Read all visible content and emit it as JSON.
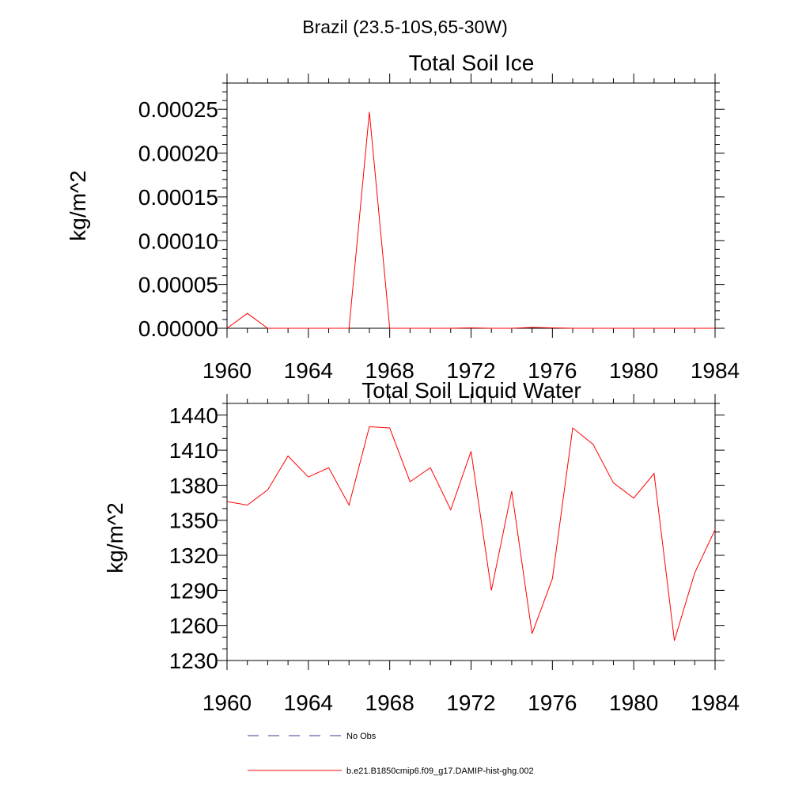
{
  "figure_title": "Brazil (23.5-10S,65-30W)",
  "legend": [
    {
      "label": "No Obs",
      "style": "dashed",
      "color": "#3b3b8f"
    },
    {
      "label": "b.e21.B1850cmip6.f09_g17.DAMIP-hist-ghg.002",
      "style": "solid",
      "color": "#ff0000"
    }
  ],
  "colors": {
    "series": "#ff0000",
    "axes": "#000000",
    "no_obs": "#3b3b8f"
  },
  "chart_data": [
    {
      "type": "line",
      "title": "Total Soil Ice",
      "xlabel": "",
      "ylabel": "kg/m^2",
      "xlim": [
        1960,
        1984
      ],
      "ylim": [
        0,
        0.00028
      ],
      "xticks": [
        1960,
        1964,
        1968,
        1972,
        1976,
        1980,
        1984
      ],
      "xticklabels": [
        "1960",
        "1964",
        "1968",
        "1972",
        "1976",
        "1980",
        "1984"
      ],
      "yticks": [
        0,
        5e-05,
        0.0001,
        0.00015,
        0.0002,
        0.00025
      ],
      "yticklabels": [
        "0.00000",
        "0.00005",
        "0.00010",
        "0.00015",
        "0.00020",
        "0.00025"
      ],
      "series": [
        {
          "name": "b.e21.B1850cmip6.f09_g17.DAMIP-hist-ghg.002",
          "x": [
            1960,
            1961,
            1962,
            1963,
            1964,
            1965,
            1966,
            1967,
            1968,
            1969,
            1970,
            1971,
            1972,
            1973,
            1974,
            1975,
            1976,
            1977,
            1978,
            1979,
            1980,
            1981,
            1982,
            1983,
            1984
          ],
          "y": [
            0,
            1.7e-05,
            0,
            0,
            0,
            0,
            0,
            0.000247,
            0,
            0,
            0,
            0,
            5e-07,
            0,
            0,
            1e-06,
            5e-07,
            0,
            0,
            0,
            0,
            0,
            0,
            0,
            0
          ]
        }
      ]
    },
    {
      "type": "line",
      "title": "Total Soil Liquid Water",
      "xlabel": "",
      "ylabel": "kg/m^2",
      "xlim": [
        1960,
        1984
      ],
      "ylim": [
        1230,
        1450
      ],
      "xticks": [
        1960,
        1964,
        1968,
        1972,
        1976,
        1980,
        1984
      ],
      "xticklabels": [
        "1960",
        "1964",
        "1968",
        "1972",
        "1976",
        "1980",
        "1984"
      ],
      "yticks": [
        1230,
        1260,
        1290,
        1320,
        1350,
        1380,
        1410,
        1440
      ],
      "yticklabels": [
        "1230",
        "1260",
        "1290",
        "1320",
        "1350",
        "1380",
        "1410",
        "1440"
      ],
      "series": [
        {
          "name": "b.e21.B1850cmip6.f09_g17.DAMIP-hist-ghg.002",
          "x": [
            1960,
            1961,
            1962,
            1963,
            1964,
            1965,
            1966,
            1967,
            1968,
            1969,
            1970,
            1971,
            1972,
            1973,
            1974,
            1975,
            1976,
            1977,
            1978,
            1979,
            1980,
            1981,
            1982,
            1983,
            1984
          ],
          "y": [
            1366,
            1363,
            1376,
            1405,
            1387,
            1395,
            1363,
            1430,
            1429,
            1383,
            1395,
            1359,
            1409,
            1290,
            1375,
            1253,
            1300,
            1429,
            1415,
            1382,
            1369,
            1390,
            1247,
            1305,
            1342
          ]
        }
      ]
    }
  ]
}
